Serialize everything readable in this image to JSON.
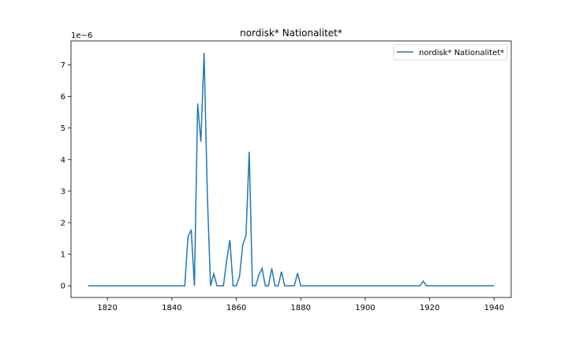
{
  "chart_data": {
    "type": "line",
    "title": "nordisk* Nationalitet*",
    "xlabel": "",
    "ylabel": "",
    "y_offset_label": "1e−6",
    "xlim": [
      1808.7,
      1945.3
    ],
    "ylim": [
      -3.7e-07,
      7.76e-06
    ],
    "x_ticks": [
      1820,
      1840,
      1860,
      1880,
      1900,
      1920,
      1940
    ],
    "y_ticks": [
      0,
      1,
      2,
      3,
      4,
      5,
      6,
      7
    ],
    "y_tick_scale": 1e-06,
    "grid": false,
    "legend_position": "top-right",
    "series": [
      {
        "name": "nordisk* Nationalitet*",
        "color": "#1f77b4",
        "x": [
          1814,
          1815,
          1816,
          1817,
          1818,
          1819,
          1820,
          1821,
          1822,
          1823,
          1824,
          1825,
          1826,
          1827,
          1828,
          1829,
          1830,
          1831,
          1832,
          1833,
          1834,
          1835,
          1836,
          1837,
          1838,
          1839,
          1840,
          1841,
          1842,
          1843,
          1844,
          1845,
          1846,
          1847,
          1848,
          1849,
          1850,
          1851,
          1852,
          1853,
          1854,
          1855,
          1856,
          1857,
          1858,
          1859,
          1860,
          1861,
          1862,
          1863,
          1864,
          1865,
          1866,
          1867,
          1868,
          1869,
          1870,
          1871,
          1872,
          1873,
          1874,
          1875,
          1876,
          1877,
          1878,
          1879,
          1880,
          1881,
          1882,
          1883,
          1884,
          1885,
          1886,
          1887,
          1888,
          1889,
          1890,
          1891,
          1892,
          1893,
          1894,
          1895,
          1896,
          1897,
          1898,
          1899,
          1900,
          1901,
          1902,
          1903,
          1904,
          1905,
          1906,
          1907,
          1908,
          1909,
          1910,
          1911,
          1912,
          1913,
          1914,
          1915,
          1916,
          1917,
          1918,
          1919,
          1920,
          1921,
          1922,
          1923,
          1924,
          1925,
          1926,
          1927,
          1928,
          1929,
          1930,
          1931,
          1932,
          1933,
          1934,
          1935,
          1936,
          1937,
          1938,
          1939,
          1940
        ],
        "y": [
          0,
          0,
          0,
          0,
          0,
          0,
          0,
          0,
          0,
          0,
          0,
          0,
          0,
          0,
          0,
          0,
          0,
          0,
          0,
          0,
          0,
          0,
          0,
          0,
          0,
          0,
          0,
          0,
          0,
          0,
          0,
          1.55e-06,
          1.78e-06,
          0,
          5.78e-06,
          4.57e-06,
          7.38e-06,
          2.9e-06,
          0,
          3.8e-07,
          0,
          0,
          0,
          8e-07,
          1.45e-06,
          0,
          0,
          3e-07,
          1.3e-06,
          1.6e-06,
          4.25e-06,
          0,
          0,
          3.5e-07,
          5.5e-07,
          0,
          0,
          5.5e-07,
          0,
          0,
          4.5e-07,
          0,
          0,
          0,
          0,
          4e-07,
          0,
          0,
          0,
          0,
          0,
          0,
          0,
          0,
          0,
          0,
          0,
          0,
          0,
          0,
          0,
          0,
          0,
          0,
          0,
          0,
          0,
          0,
          0,
          0,
          0,
          0,
          0,
          0,
          0,
          0,
          0,
          0,
          0,
          0,
          0,
          0,
          0,
          0,
          1.5e-07,
          0,
          0,
          0,
          0,
          0,
          0,
          0,
          0,
          0,
          0,
          0,
          0,
          0,
          0,
          0,
          0,
          0,
          0,
          0,
          0,
          0,
          0
        ]
      }
    ]
  }
}
